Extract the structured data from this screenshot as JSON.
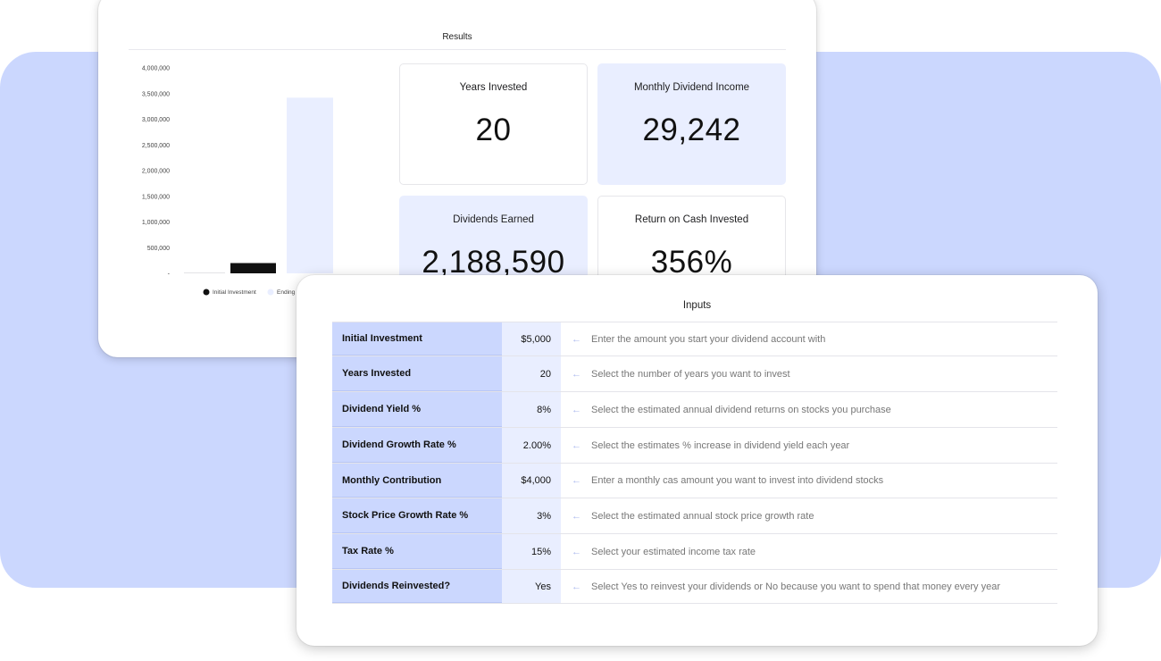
{
  "results": {
    "title": "Results",
    "stats": [
      {
        "label": "Years Invested",
        "value": "20"
      },
      {
        "label": "Monthly Dividend Income",
        "value": "29,242"
      },
      {
        "label": "Dividends Earned",
        "value": "2,188,590"
      },
      {
        "label": "Return on Cash Invested",
        "value": "356%"
      }
    ]
  },
  "chart_data": {
    "type": "bar",
    "categories": [
      "Initial Investment",
      "Ending"
    ],
    "series": [
      {
        "name": "Initial Investment",
        "values": [
          5000,
          0
        ],
        "color": "#111111"
      },
      {
        "name": "Ending",
        "values": [
          0,
          3420000
        ],
        "color": "#e9eeff"
      }
    ],
    "ylim": [
      0,
      4000000
    ],
    "yticks": [
      "4,000,000",
      "3,500,000",
      "3,000,000",
      "2,500,000",
      "2,000,000",
      "1,500,000",
      "1,000,000",
      "500,000",
      "-"
    ],
    "legend": [
      "Initial Investment",
      "Ending"
    ],
    "legend_position": "bottom"
  },
  "inputs": {
    "title": "Inputs",
    "rows": [
      {
        "label": "Initial Investment",
        "value": "$5,000",
        "desc": "Enter the amount you start your dividend account with"
      },
      {
        "label": "Years Invested",
        "value": "20",
        "desc": "Select the number of years you want to invest"
      },
      {
        "label": "Dividend Yield %",
        "value": "8%",
        "desc": "Select the estimated annual dividend returns on stocks you purchase"
      },
      {
        "label": "Dividend Growth Rate %",
        "value": "2.00%",
        "desc": "Select the estimates % increase in dividend yield each year"
      },
      {
        "label": "Monthly Contribution",
        "value": "$4,000",
        "desc": "Enter a monthly cas amount you want to invest into dividend stocks"
      },
      {
        "label": "Stock Price Growth Rate %",
        "value": "3%",
        "desc": "Select the estimated annual stock price growth rate"
      },
      {
        "label": "Tax Rate %",
        "value": "15%",
        "desc": "Select your estimated income tax rate"
      },
      {
        "label": "Dividends Reinvested?",
        "value": "Yes",
        "desc": "Select Yes to reinvest your dividends or No because you want to spend that money every year"
      }
    ],
    "arrow_icon": "left-arrow-icon"
  },
  "colors": {
    "backdrop": "#cbd7fe",
    "stat_blue": "#e9eeff",
    "label_cell": "#cbd7fe",
    "value_cell": "#e9eeff"
  }
}
